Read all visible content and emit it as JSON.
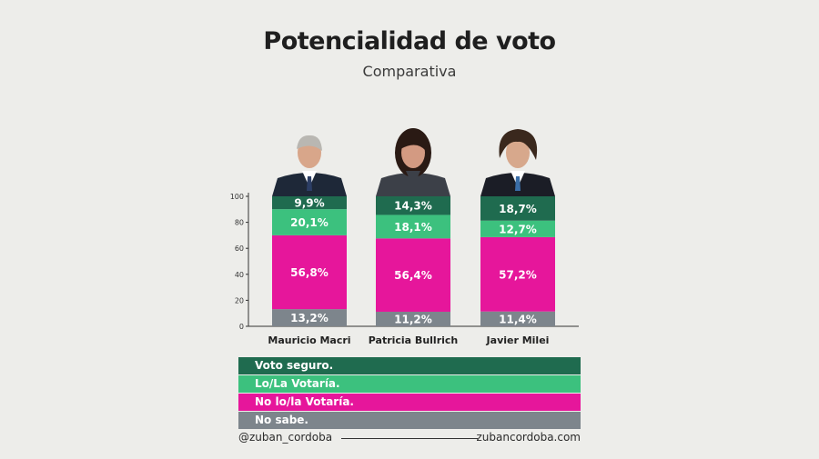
{
  "title": "Potencialidad de voto",
  "subtitle": "Comparativa",
  "colors": {
    "voto_seguro": "#1f6b4f",
    "lo_la_votaria": "#3cc17e",
    "no_lo_la_votaria": "#e6169b",
    "no_sabe": "#7d858c",
    "background": "#ededea"
  },
  "chart_data": {
    "type": "bar",
    "stacked": true,
    "categories": [
      "Mauricio Macri",
      "Patricia Bullrich",
      "Javier Milei"
    ],
    "series": [
      {
        "name": "No sabe.",
        "values": [
          13.2,
          11.2,
          11.4
        ],
        "labels": [
          "13,2%",
          "11,2%",
          "11,4%"
        ],
        "color": "#7d858c"
      },
      {
        "name": "No lo/la Votaría.",
        "values": [
          56.8,
          56.4,
          57.2
        ],
        "labels": [
          "56,8%",
          "56,4%",
          "57,2%"
        ],
        "color": "#e6169b"
      },
      {
        "name": "Lo/La Votaría.",
        "values": [
          20.1,
          18.1,
          12.7
        ],
        "labels": [
          "20,1%",
          "18,1%",
          "12,7%"
        ],
        "color": "#3cc17e"
      },
      {
        "name": "Voto seguro.",
        "values": [
          9.9,
          14.3,
          18.7
        ],
        "labels": [
          "9,9%",
          "14,3%",
          "18,7%"
        ],
        "color": "#1f6b4f"
      }
    ],
    "ylim": [
      0,
      100
    ],
    "yticks": [
      "0",
      "20",
      "40",
      "60",
      "80",
      "100"
    ],
    "legend_position": "bottom",
    "portraits": [
      "man-in-suit-icon",
      "woman-in-blazer-icon",
      "man-with-long-hair-icon"
    ]
  },
  "legend": [
    {
      "label": "Voto seguro.",
      "color": "#1f6b4f"
    },
    {
      "label": "Lo/La Votaría.",
      "color": "#3cc17e"
    },
    {
      "label": "No lo/la Votaría.",
      "color": "#e6169b"
    },
    {
      "label": "No sabe.",
      "color": "#7d858c"
    }
  ],
  "footer": {
    "handle": "@zuban_cordoba",
    "website": "zubancordoba.com"
  }
}
